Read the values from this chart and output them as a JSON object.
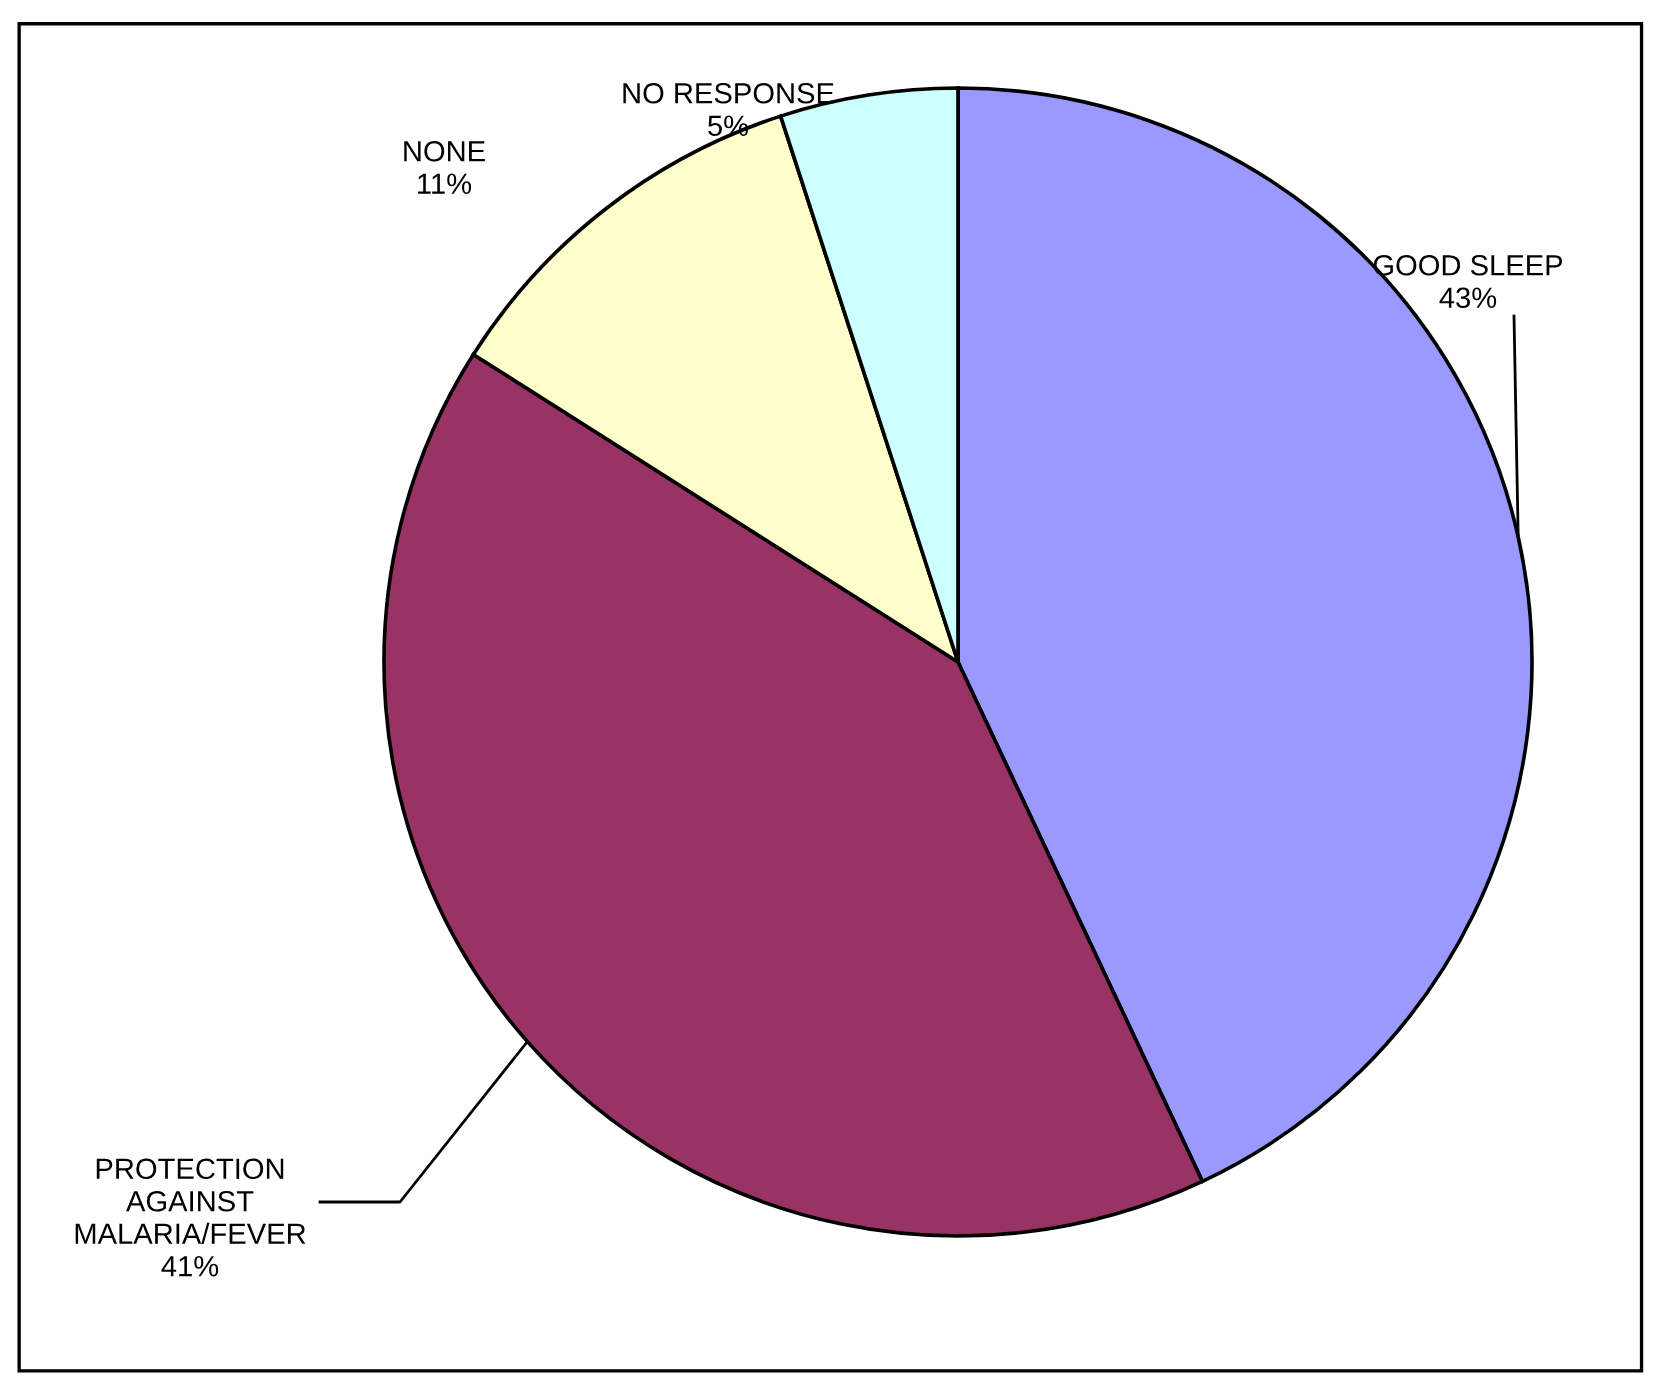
{
  "chart_data": {
    "type": "pie",
    "categories": [
      "GOOD SLEEP",
      "PROTECTION AGAINST MALARIA/FEVER",
      "NONE",
      "NO RESPONSE"
    ],
    "values": [
      43,
      41,
      11,
      5
    ],
    "colors": [
      "#9999ff",
      "#993366",
      "#ffffcc",
      "#ccffff"
    ],
    "value_labels": [
      "43%",
      "41%",
      "11%",
      "5%"
    ],
    "legend": false
  }
}
